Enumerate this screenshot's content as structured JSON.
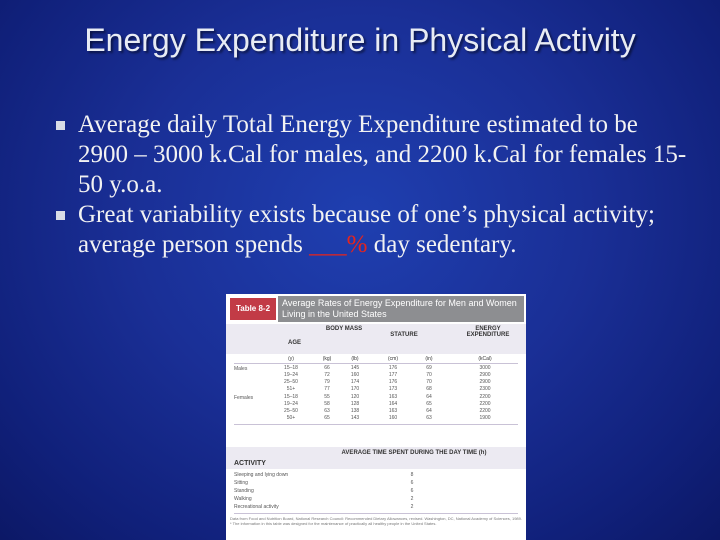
{
  "slide": {
    "title": "Energy Expenditure in Physical Activity",
    "bullets": [
      {
        "text_before": "Average daily Total Energy Expenditure estimated to be 2900 – 3000 k.Cal for males, and 2200 k.Cal for females 15-50 y.o.a.",
        "blank": "",
        "text_after": ""
      },
      {
        "text_before": "Great variability exists because of one’s physical activity; average person spends ",
        "blank": "___%",
        "text_after": " day sedentary."
      }
    ],
    "colors": {
      "background": "#1a2f96",
      "blank_text": "#e8241b"
    }
  },
  "table": {
    "label": "Table 8-2",
    "title": "Average Rates of Energy Expenditure for Men and Women Living in the United States",
    "headers": {
      "age": "AGE",
      "age_unit": "(y)",
      "body_mass": "BODY MASS",
      "stature": "STATURE",
      "energy": "ENERGY EXPENDITURE",
      "kg": "(kg)",
      "lb": "(lb)",
      "cm": "(cm)",
      "in": "(in)",
      "kcal": "(kCal)"
    },
    "groups": {
      "males": "Males",
      "females": "Females"
    },
    "male_rows": [
      {
        "age": "15–18",
        "kg": "66",
        "lb": "145",
        "cm": "176",
        "in": "69",
        "kcal": "3000"
      },
      {
        "age": "19–24",
        "kg": "72",
        "lb": "160",
        "cm": "177",
        "in": "70",
        "kcal": "2900"
      },
      {
        "age": "25–50",
        "kg": "79",
        "lb": "174",
        "cm": "176",
        "in": "70",
        "kcal": "2900"
      },
      {
        "age": "51+",
        "kg": "77",
        "lb": "170",
        "cm": "173",
        "in": "68",
        "kcal": "2300"
      }
    ],
    "female_rows": [
      {
        "age": "15–18",
        "kg": "55",
        "lb": "120",
        "cm": "163",
        "in": "64",
        "kcal": "2200"
      },
      {
        "age": "19–24",
        "kg": "58",
        "lb": "128",
        "cm": "164",
        "in": "65",
        "kcal": "2200"
      },
      {
        "age": "25–50",
        "kg": "63",
        "lb": "138",
        "cm": "163",
        "in": "64",
        "kcal": "2200"
      },
      {
        "age": "50+",
        "kg": "65",
        "lb": "143",
        "cm": "160",
        "in": "63",
        "kcal": "1900"
      }
    ],
    "activity": {
      "title": "ACTIVITY",
      "time_header": "AVERAGE TIME SPENT DURING THE DAY TIME (h)",
      "rows": [
        {
          "name": "Sleeping and lying down",
          "hours": "8"
        },
        {
          "name": "Sitting",
          "hours": "6"
        },
        {
          "name": "Standing",
          "hours": "6"
        },
        {
          "name": "Walking",
          "hours": "2"
        },
        {
          "name": "Recreational activity",
          "hours": "2"
        }
      ]
    },
    "footnote": "Data from Food and Nutrition Board, National Research Council: Recommended Dietary Allowances, revised. Washington, DC, National Academy of Sciences, 1989. * The information in this table was designed for the maintenance of practically all healthy people in the United States."
  }
}
